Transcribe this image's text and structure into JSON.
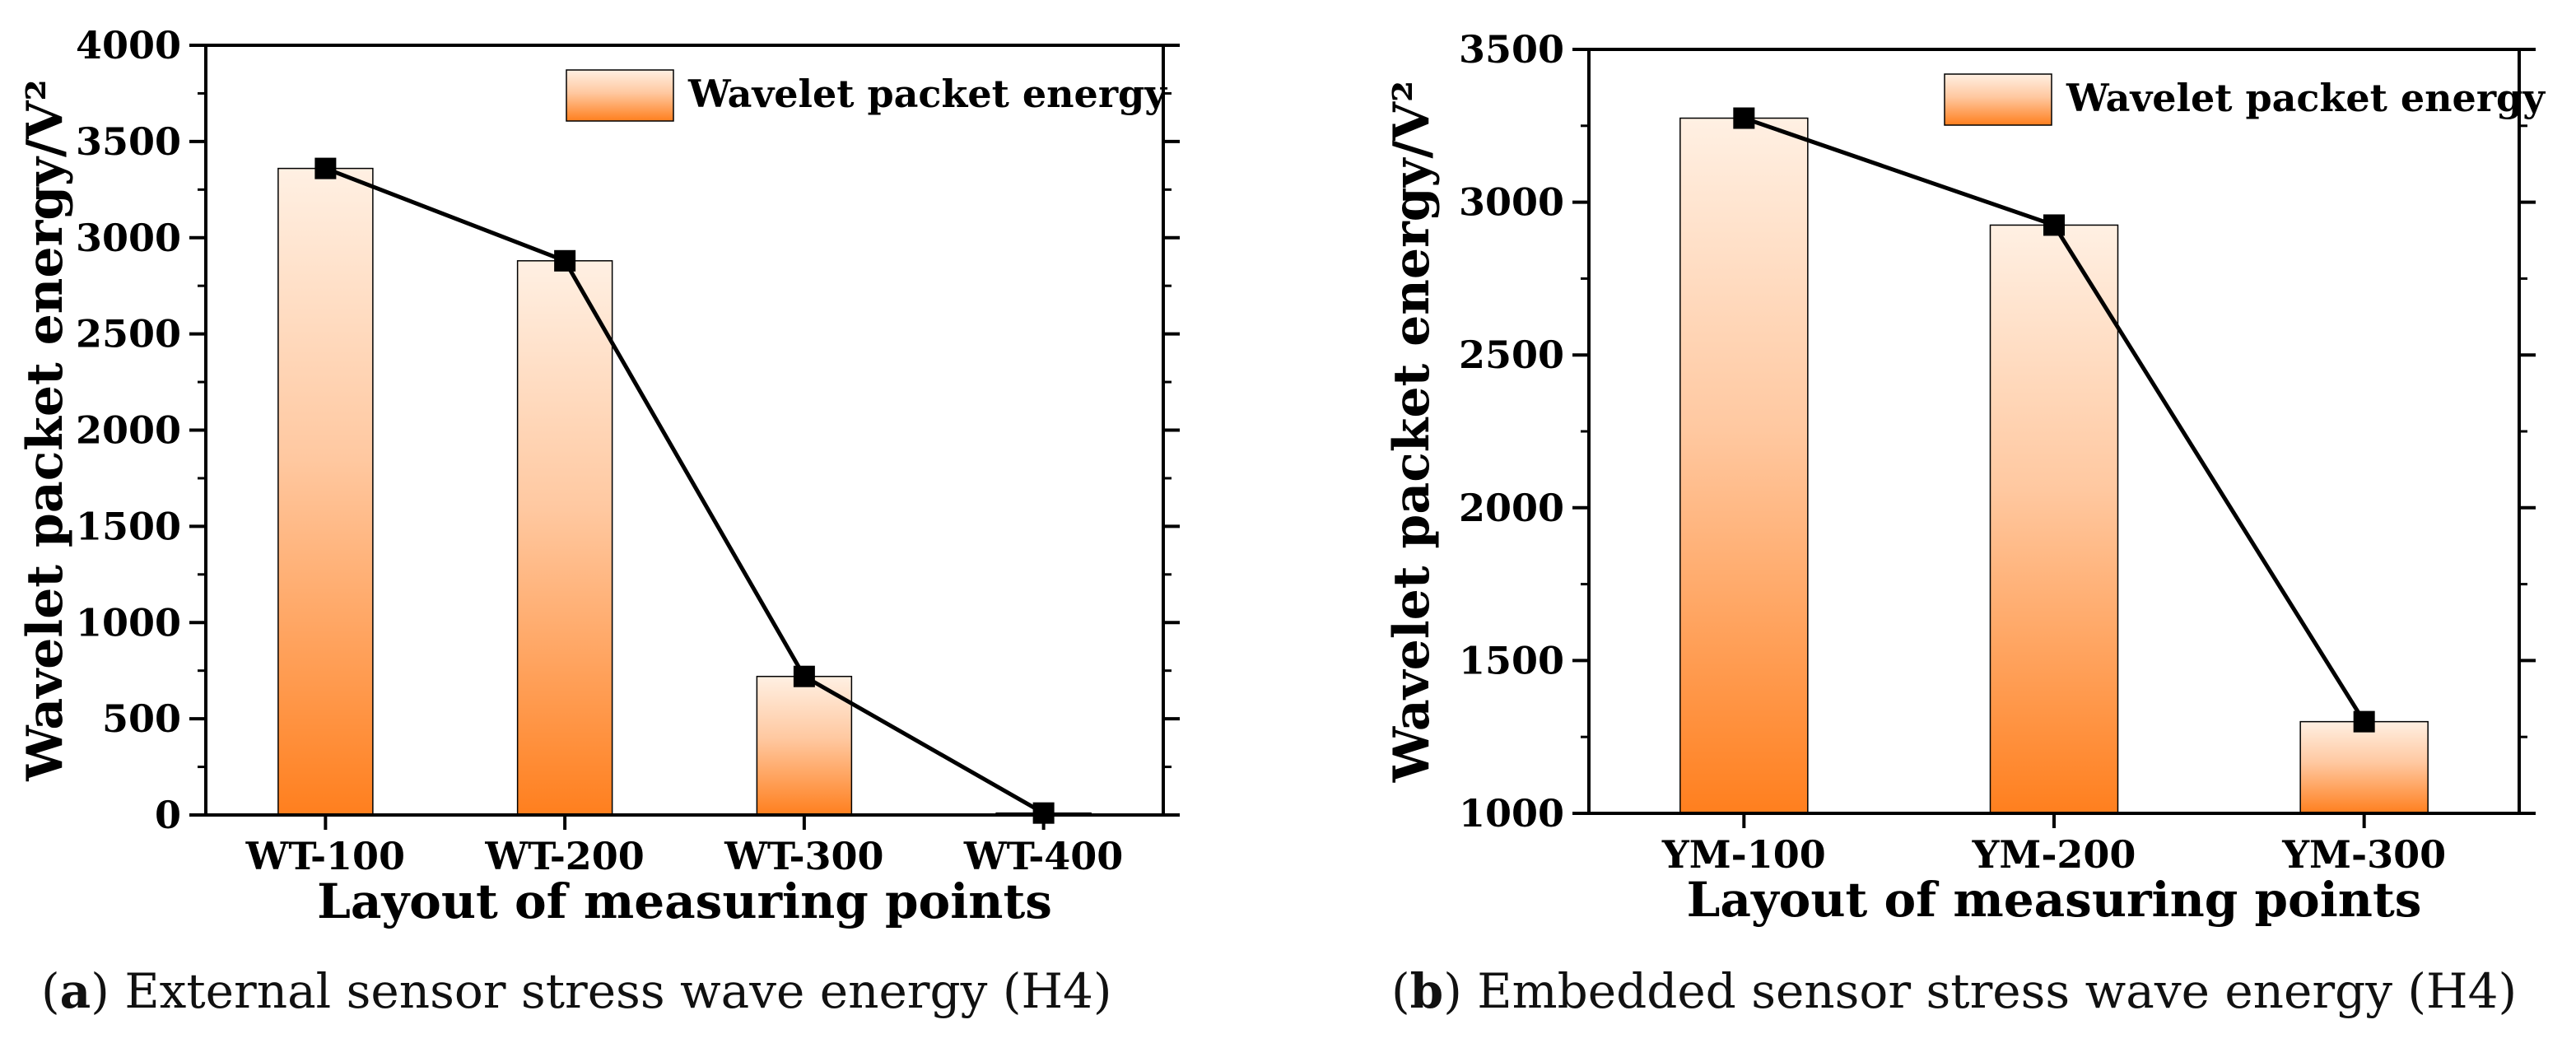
{
  "chart_data": [
    {
      "type": "bar",
      "panel_label": "a",
      "caption": "External sensor stress wave energy (H4)",
      "categories": [
        "WT-100",
        "WT-200",
        "WT-300",
        "WT-400"
      ],
      "values": [
        3360,
        2880,
        720,
        10
      ],
      "line_overlay": true,
      "ylim": [
        0,
        4000
      ],
      "yticks": [
        0,
        500,
        1000,
        1500,
        2000,
        2500,
        3000,
        3500,
        4000
      ],
      "ylabel": "Wavelet packet energy/V²",
      "xlabel": "Layout of measuring points",
      "legend": "Wavelet packet energy",
      "legend_position": "top-right",
      "colors": {
        "bar_top": "#fff0e3",
        "bar_bottom": "#ff7f1e",
        "line": "#000000"
      }
    },
    {
      "type": "bar",
      "panel_label": "b",
      "caption": "Embedded sensor stress wave energy (H4)",
      "categories": [
        "YM-100",
        "YM-200",
        "YM-300"
      ],
      "values": [
        3275,
        2925,
        1300
      ],
      "line_overlay": true,
      "ylim": [
        1000,
        3500
      ],
      "yticks": [
        1000,
        1500,
        2000,
        2500,
        3000,
        3500
      ],
      "ylabel": "Wavelet packet energy/V²",
      "xlabel": "Layout of measuring points",
      "legend": "Wavelet packet energy",
      "legend_position": "top-right",
      "colors": {
        "bar_top": "#fff0e3",
        "bar_bottom": "#ff7f1e",
        "line": "#000000"
      }
    }
  ]
}
